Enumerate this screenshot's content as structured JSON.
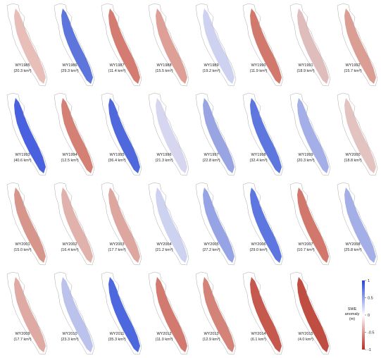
{
  "panels": [
    {
      "year": "WY1985",
      "volume": "(20.3 km³)",
      "color": "#e6b7b0"
    },
    {
      "year": "WY1986",
      "volume": "(29.3 km³)",
      "color": "#4c66d8"
    },
    {
      "year": "WY1987",
      "volume": "(11.4 km³)",
      "color": "#cf6e62"
    },
    {
      "year": "WY1988",
      "volume": "(15.5 km³)",
      "color": "#d9958b"
    },
    {
      "year": "WY1989",
      "volume": "(19.2 km³)",
      "color": "#c9cdee"
    },
    {
      "year": "WY1990",
      "volume": "(11.9 km³)",
      "color": "#cd6a5e"
    },
    {
      "year": "WY1991",
      "volume": "(18.9 km³)",
      "color": "#dcb6b6"
    },
    {
      "year": "WY1992",
      "volume": "(15.7 km³)",
      "color": "#d7938a"
    },
    {
      "year": "WY1993",
      "volume": "(40.6 km³)",
      "color": "#3650dc"
    },
    {
      "year": "WY1994",
      "volume": "(12.5 km³)",
      "color": "#cf7266"
    },
    {
      "year": "WY1995",
      "volume": "(36.4 km³)",
      "color": "#3c58d8"
    },
    {
      "year": "WY1996",
      "volume": "(21.3 km³)",
      "color": "#d2d2ee"
    },
    {
      "year": "WY1997",
      "volume": "(22.8 km³)",
      "color": "#8e9ae0"
    },
    {
      "year": "WY1998",
      "volume": "(32.4 km³)",
      "color": "#4d68dc"
    },
    {
      "year": "WY1999",
      "volume": "(20.3 km³)",
      "color": "#9aa6e4"
    },
    {
      "year": "WY2000",
      "volume": "(18.8 km³)",
      "color": "#e0bcb8"
    },
    {
      "year": "WY2001",
      "volume": "(15.0 km³)",
      "color": "#d38b80"
    },
    {
      "year": "WY2002",
      "volume": "(16.4 km³)",
      "color": "#deaaa3"
    },
    {
      "year": "WY2003",
      "volume": "(17.7 km³)",
      "color": "#d99c94"
    },
    {
      "year": "WY2004",
      "volume": "(21.2 km³)",
      "color": "#c7cdee"
    },
    {
      "year": "WY2005",
      "volume": "(27.2 km³)",
      "color": "#8b99e2"
    },
    {
      "year": "WY2006",
      "volume": "(29.0 km³)",
      "color": "#4d67db"
    },
    {
      "year": "WY2007",
      "volume": "(10.7 km³)",
      "color": "#cd685b"
    },
    {
      "year": "WY2008",
      "volume": "(25.8 km³)",
      "color": "#9aa6e4"
    },
    {
      "year": "WY2009",
      "volume": "(17.7 km³)",
      "color": "#dba199"
    },
    {
      "year": "WY2010",
      "volume": "(23.3 km³)",
      "color": "#b4bdea"
    },
    {
      "year": "WY2011",
      "volume": "(35.3 km³)",
      "color": "#3a56da"
    },
    {
      "year": "WY2012",
      "volume": "(11.0 km³)",
      "color": "#cd6c5f"
    },
    {
      "year": "WY2013",
      "volume": "(12.9 km³)",
      "color": "#cf7569"
    },
    {
      "year": "WY2014",
      "volume": "(6.1 km³)",
      "color": "#c0473a"
    },
    {
      "year": "WY2015",
      "volume": "(4.0 km³)",
      "color": "#b93a2e"
    }
  ],
  "colorbar": {
    "label": [
      "SWE",
      "anomaly",
      "(m)"
    ],
    "lim": [
      -1,
      1
    ],
    "ticks": [
      1,
      0.5,
      0,
      -0.5,
      -1
    ],
    "colors": [
      "#b52f25",
      "#ffffff",
      "#2a44d8"
    ]
  }
}
